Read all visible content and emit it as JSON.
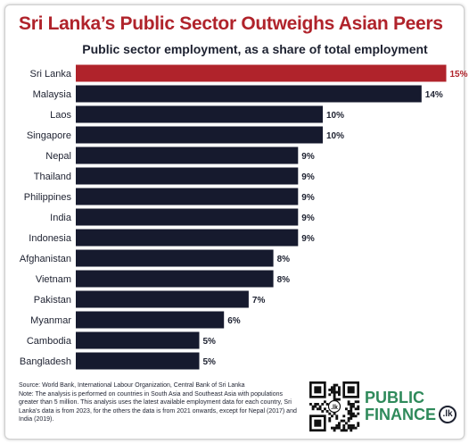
{
  "header": {
    "title": "Sri Lanka’s Public Sector Outweighs Asian Peers",
    "subtitle": "Public sector employment, as a share of total employment"
  },
  "chart_data": {
    "type": "bar",
    "orientation": "horizontal",
    "title": "Sri Lanka’s Public Sector Outweighs Asian Peers",
    "subtitle": "Public sector employment, as a share of total employment",
    "categories": [
      "Sri Lanka",
      "Malaysia",
      "Laos",
      "Singapore",
      "Nepal",
      "Thailand",
      "Philippines",
      "India",
      "Indonesia",
      "Afghanistan",
      "Vietnam",
      "Pakistan",
      "Myanmar",
      "Cambodia",
      "Bangladesh"
    ],
    "values": [
      15,
      14,
      10,
      10,
      9,
      9,
      9,
      9,
      9,
      8,
      8,
      7,
      6,
      5,
      5
    ],
    "value_labels": [
      "15%",
      "14%",
      "10%",
      "10%",
      "9%",
      "9%",
      "9%",
      "9%",
      "9%",
      "8%",
      "8%",
      "7%",
      "6%",
      "5%",
      "5%"
    ],
    "highlight_category": "Sri Lanka",
    "colors": {
      "highlight": "#b0232b",
      "bar": "#161a2e"
    },
    "xlim": [
      0,
      15
    ],
    "grid": false,
    "legend": "none"
  },
  "footer": {
    "source": "Source: World Bank, International Labour Organization, Central Bank of Sri Lanka",
    "note": "Note: The analysis is performed on countries in South Asia and Southeast Asia with populations greater than 5 million. This analysis uses the latest available employment data for each country, Sri Lanka's data is from 2023, for the others the data is from 2021 onwards, except for Nepal (2017) and India (2019)."
  },
  "logo": {
    "line1": "PUBLIC",
    "line2": "FINANCE",
    "badge": ".lk"
  },
  "qr": {
    "badge": ".lk",
    "icon": "qr-code-icon"
  }
}
